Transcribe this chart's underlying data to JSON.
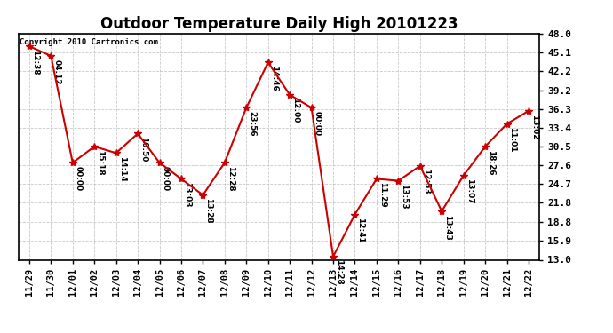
{
  "title": "Outdoor Temperature Daily High 20101223",
  "copyright_text": "Copyright 2010 Cartronics.com",
  "x_labels": [
    "11/29",
    "11/30",
    "12/01",
    "12/02",
    "12/03",
    "12/04",
    "12/05",
    "12/06",
    "12/07",
    "12/08",
    "12/09",
    "12/10",
    "12/11",
    "12/12",
    "12/13",
    "12/14",
    "12/15",
    "12/16",
    "12/17",
    "12/18",
    "12/19",
    "12/20",
    "12/21",
    "12/22"
  ],
  "y_values": [
    46.0,
    44.5,
    28.0,
    30.5,
    29.5,
    32.5,
    28.0,
    25.5,
    23.0,
    28.0,
    36.5,
    43.5,
    38.5,
    36.5,
    13.5,
    20.0,
    25.5,
    25.2,
    27.5,
    20.5,
    26.0,
    30.5,
    34.0,
    36.0
  ],
  "annotations": [
    "12:38",
    "04:12",
    "00:00",
    "15:18",
    "14:14",
    "10:50",
    "00:00",
    "13:03",
    "13:28",
    "12:28",
    "23:56",
    "14:46",
    "12:00",
    "00:00",
    "14:28",
    "12:41",
    "11:29",
    "13:53",
    "12:53",
    "13:43",
    "13:07",
    "18:26",
    "11:01",
    "13:02"
  ],
  "line_color": "#cc0000",
  "marker_color": "#cc0000",
  "background_color": "#ffffff",
  "grid_color": "#bbbbbb",
  "y_ticks": [
    13.0,
    15.9,
    18.8,
    21.8,
    24.7,
    27.6,
    30.5,
    33.4,
    36.3,
    39.2,
    42.2,
    45.1,
    48.0
  ],
  "ylim": [
    13.0,
    48.0
  ],
  "annotation_fontsize": 6.5,
  "title_fontsize": 12
}
